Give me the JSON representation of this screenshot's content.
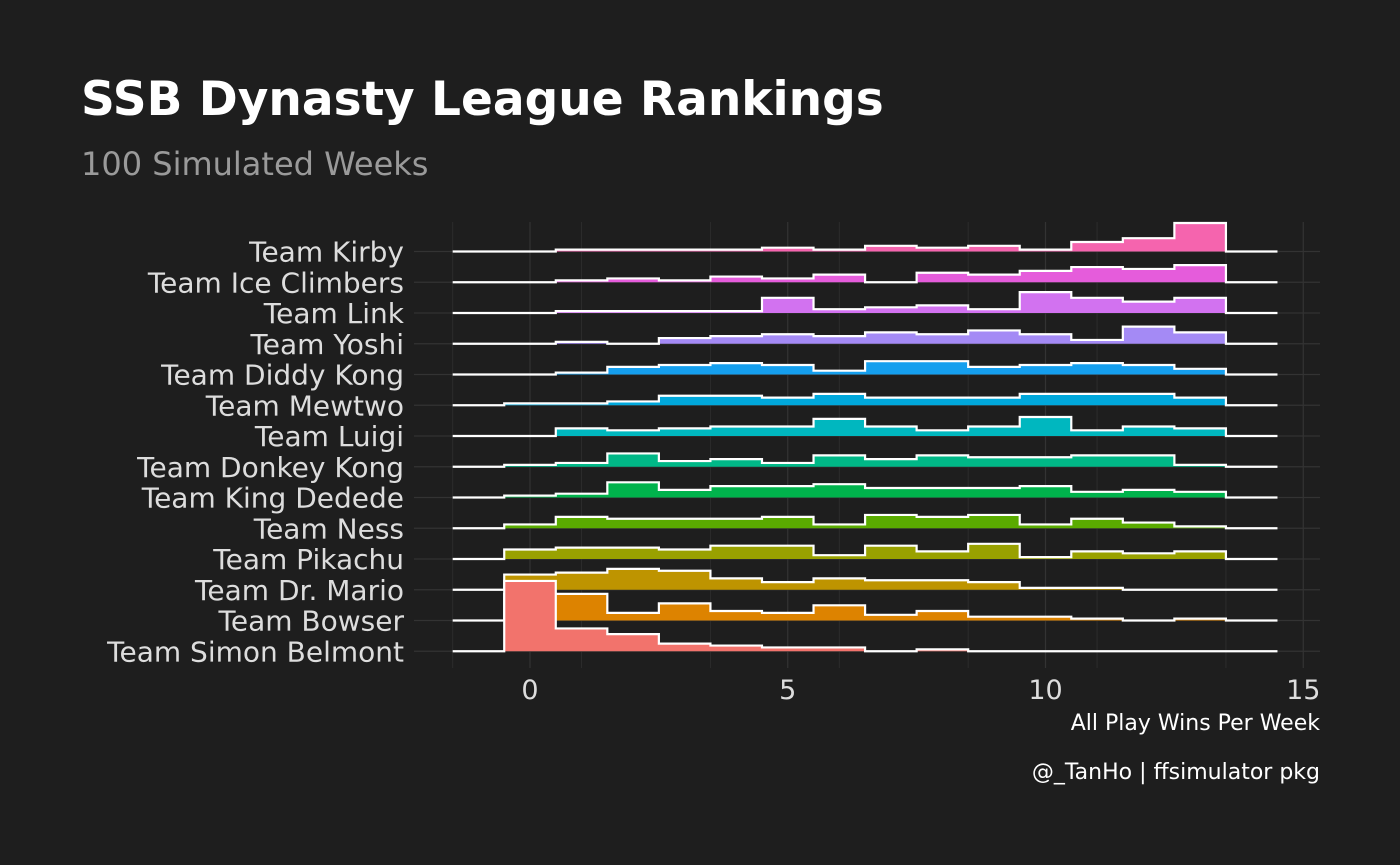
{
  "title": "SSB Dynasty League Rankings",
  "subtitle": "100 Simulated Weeks",
  "caption": "@_TanHo | ffsimulator pkg",
  "chart_data": {
    "type": "area",
    "subtype": "ridgeline-histogram",
    "title": "SSB Dynasty League Rankings",
    "subtitle": "100 Simulated Weeks",
    "xlabel": "All Play Wins Per Week",
    "ylabel": "",
    "xlim": [
      -2,
      15.5
    ],
    "x_ticks": [
      0,
      5,
      10,
      15
    ],
    "grid": true,
    "legend": "none",
    "bins_x": [
      0,
      1,
      2,
      3,
      4,
      5,
      6,
      7,
      8,
      9,
      10,
      11,
      12,
      13
    ],
    "series": [
      {
        "name": "Team Kirby",
        "color": "#F564AE",
        "values": [
          0,
          1,
          1,
          1,
          1,
          2,
          1,
          3,
          2,
          3,
          1,
          5,
          7,
          15
        ]
      },
      {
        "name": "Team Ice Climbers",
        "color": "#E55CDB",
        "values": [
          0,
          1,
          2,
          1,
          3,
          2,
          4,
          0,
          5,
          4,
          6,
          8,
          7,
          9
        ]
      },
      {
        "name": "Team Link",
        "color": "#D272F0",
        "values": [
          0,
          1,
          1,
          1,
          1,
          8,
          2,
          3,
          4,
          2,
          11,
          8,
          6,
          8
        ]
      },
      {
        "name": "Team Yoshi",
        "color": "#A48AF5",
        "values": [
          0,
          1,
          0,
          3,
          4,
          5,
          4,
          6,
          5,
          7,
          5,
          2,
          9,
          6
        ]
      },
      {
        "name": "Team Diddy Kong",
        "color": "#159FEE",
        "values": [
          0,
          1,
          4,
          5,
          6,
          5,
          2,
          7,
          7,
          4,
          5,
          6,
          5,
          3
        ]
      },
      {
        "name": "Team Mewtwo",
        "color": "#00A8DC",
        "values": [
          1,
          1,
          2,
          5,
          5,
          4,
          6,
          4,
          4,
          4,
          6,
          6,
          6,
          4
        ]
      },
      {
        "name": "Team Luigi",
        "color": "#00B7BF",
        "values": [
          0,
          4,
          3,
          4,
          5,
          5,
          9,
          5,
          3,
          5,
          10,
          3,
          5,
          4
        ]
      },
      {
        "name": "Team Donkey Kong",
        "color": "#00B887",
        "values": [
          1,
          2,
          7,
          3,
          4,
          2,
          6,
          4,
          6,
          5,
          5,
          6,
          6,
          1
        ]
      },
      {
        "name": "Team King Dedede",
        "color": "#00B34C",
        "values": [
          1,
          2,
          8,
          4,
          6,
          6,
          7,
          5,
          5,
          5,
          6,
          3,
          4,
          3
        ]
      },
      {
        "name": "Team Ness",
        "color": "#5AAB00",
        "values": [
          2,
          6,
          5,
          5,
          5,
          6,
          2,
          7,
          6,
          7,
          2,
          5,
          3,
          1
        ]
      },
      {
        "name": "Team Pikachu",
        "color": "#99A100",
        "values": [
          5,
          6,
          6,
          5,
          7,
          7,
          2,
          7,
          4,
          8,
          1,
          4,
          3,
          4
        ]
      },
      {
        "name": "Team Dr. Mario",
        "color": "#BE9400",
        "values": [
          8,
          9,
          11,
          10,
          6,
          4,
          6,
          5,
          5,
          4,
          1,
          1,
          0,
          0
        ]
      },
      {
        "name": "Team Bowser",
        "color": "#DD8300",
        "values": [
          14,
          14,
          4,
          9,
          5,
          4,
          8,
          3,
          5,
          2,
          2,
          1,
          0,
          1
        ]
      },
      {
        "name": "Team Simon Belmont",
        "color": "#F2736C",
        "values": [
          37,
          12,
          9,
          4,
          3,
          2,
          2,
          0,
          1,
          0,
          0,
          0,
          0,
          0
        ]
      }
    ]
  }
}
